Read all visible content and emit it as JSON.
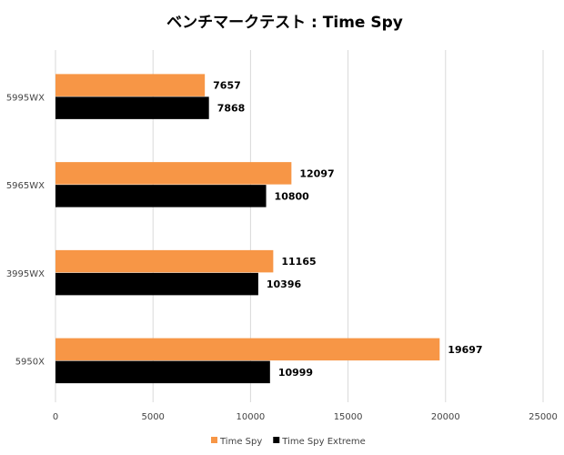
{
  "chart_data": {
    "type": "bar",
    "orientation": "horizontal",
    "title": "ベンチマークテスト : Time Spy",
    "categories": [
      "5995WX",
      "5965WX",
      "3995WX",
      "5950X"
    ],
    "series": [
      {
        "name": "Time Spy",
        "color": "#f79646",
        "values": [
          7657,
          12097,
          11165,
          19697
        ]
      },
      {
        "name": "Time Spy Extreme",
        "color": "#000000",
        "values": [
          7868,
          10800,
          10396,
          10999
        ]
      }
    ],
    "xlim": [
      0,
      25000
    ],
    "xticks": [
      0,
      5000,
      10000,
      15000,
      20000,
      25000
    ],
    "grid": true,
    "legend": "bottom"
  }
}
